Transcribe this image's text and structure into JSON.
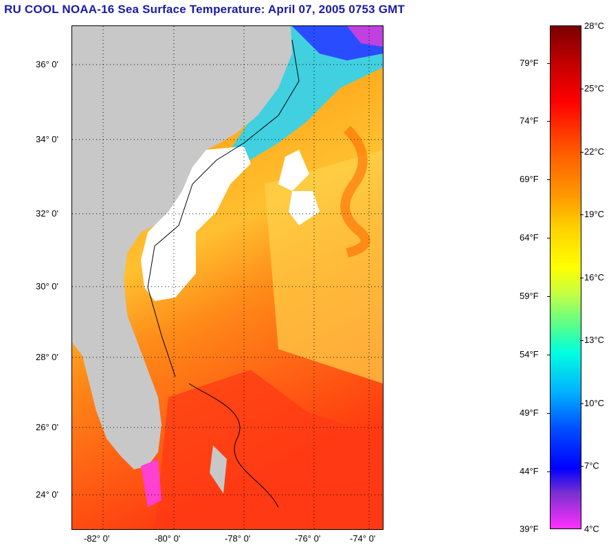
{
  "title": "RU COOL  NOAA-16  Sea Surface Temperature:  April 07, 2005 0753 GMT",
  "lat_labels": [
    "36° 0'",
    "34° 0'",
    "32° 0'",
    "30° 0'",
    "28° 0'",
    "26° 0'",
    "24° 0'"
  ],
  "lon_labels": [
    "-82° 0'",
    "-80° 0'",
    "-78° 0'",
    "-76° 0'",
    "-74° 0'"
  ],
  "colorbar": {
    "fahrenheit": [
      "79°F",
      "74°F",
      "69°F",
      "64°F",
      "59°F",
      "54°F",
      "49°F",
      "44°F",
      "39°F"
    ],
    "celsius": [
      "28°C",
      "25°C",
      "22°C",
      "19°C",
      "16°C",
      "13°C",
      "10°C",
      "7°C",
      "4°C"
    ]
  },
  "colors": {
    "land": "#c8c8c8",
    "cloud": "#ffffff",
    "title": "#1a1aa8"
  }
}
